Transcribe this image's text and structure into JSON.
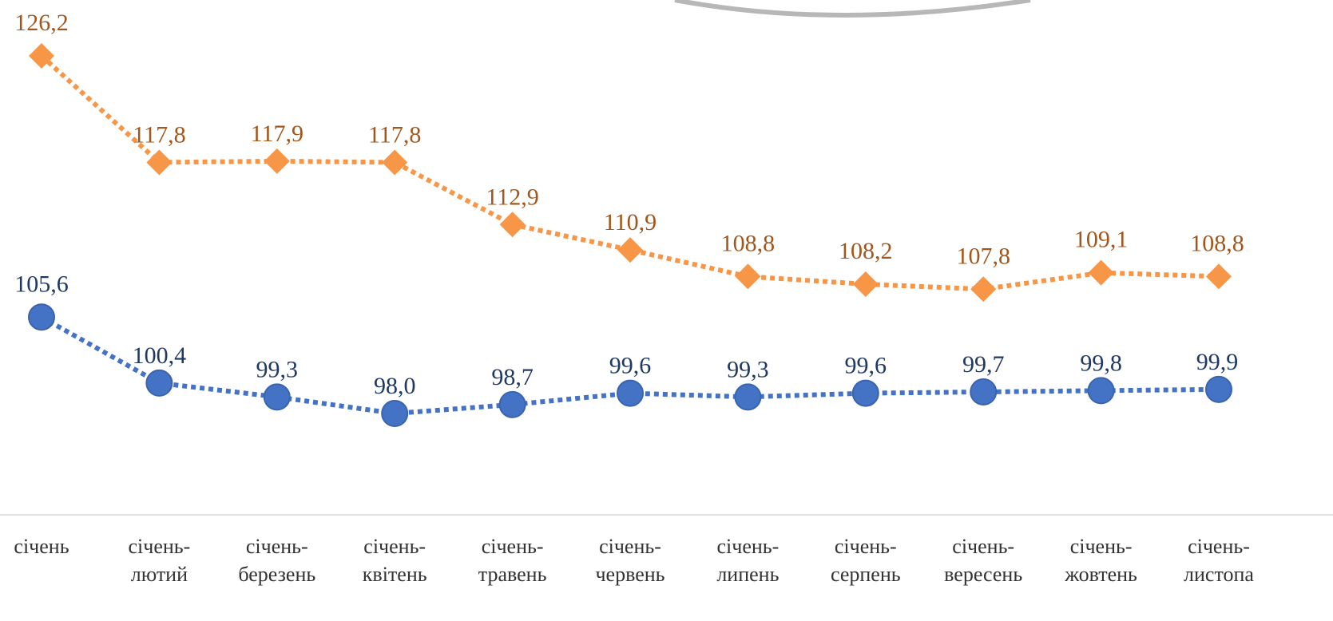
{
  "chart_data": {
    "type": "line",
    "categories": [
      [
        "січень"
      ],
      [
        "січень-",
        "лютий"
      ],
      [
        "січень-",
        "березень"
      ],
      [
        "січень-",
        "квітень"
      ],
      [
        "січень-",
        "травень"
      ],
      [
        "січень-",
        "червень"
      ],
      [
        "січень-",
        "липень"
      ],
      [
        "січень-",
        "серпень"
      ],
      [
        "січень-",
        "вересень"
      ],
      [
        "січень-",
        "жовтень"
      ],
      [
        "січень-",
        "листопа"
      ]
    ],
    "series": [
      {
        "values": [
          126.2,
          117.8,
          117.9,
          117.8,
          112.9,
          110.9,
          108.8,
          108.2,
          107.8,
          109.1,
          108.8
        ],
        "labels": [
          "126,2",
          "117,8",
          "117,9",
          "117,8",
          "112,9",
          "110,9",
          "108,8",
          "108,2",
          "107,8",
          "109,1",
          "108,8"
        ],
        "color": "#f79646",
        "label_color": "#a3561b",
        "marker": "diamond",
        "line_style": "dotted"
      },
      {
        "values": [
          105.6,
          100.4,
          99.3,
          98.0,
          98.7,
          99.6,
          99.3,
          99.6,
          99.7,
          99.8,
          99.9
        ],
        "labels": [
          "105,6",
          "100,4",
          "99,3",
          "98,0",
          "98,7",
          "99,6",
          "99,3",
          "99,6",
          "99,7",
          "99,8",
          "99,9"
        ],
        "color": "#4472c4",
        "label_color": "#1f3864",
        "marker": "circle",
        "line_style": "dotted"
      }
    ],
    "ylim": [
      88,
      131
    ],
    "grid": false,
    "legend": "none"
  }
}
